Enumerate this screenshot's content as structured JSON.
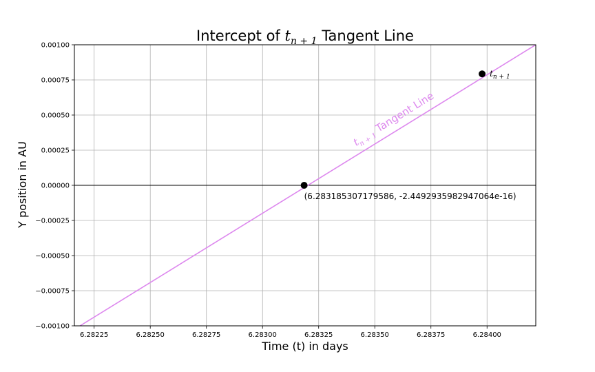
{
  "chart_data": {
    "type": "line",
    "title": {
      "prefix": "Intercept of ",
      "math_base": "t",
      "math_sub": "n + 1",
      "suffix": " Tangent Line"
    },
    "xlabel": "Time (t) in days",
    "ylabel": "Y position in AU",
    "xlim": [
      6.282162,
      6.284217
    ],
    "ylim": [
      -0.001,
      0.001
    ],
    "x_ticks": [
      {
        "value": 6.28225,
        "label": "6.28225"
      },
      {
        "value": 6.2825,
        "label": "6.28250"
      },
      {
        "value": 6.28275,
        "label": "6.28275"
      },
      {
        "value": 6.283,
        "label": "6.28300"
      },
      {
        "value": 6.28325,
        "label": "6.28325"
      },
      {
        "value": 6.2835,
        "label": "6.28350"
      },
      {
        "value": 6.28375,
        "label": "6.28375"
      },
      {
        "value": 6.284,
        "label": "6.28400"
      }
    ],
    "y_ticks": [
      {
        "value": 0.001,
        "label": "0.00100"
      },
      {
        "value": 0.00075,
        "label": "0.00075"
      },
      {
        "value": 0.0005,
        "label": "0.00050"
      },
      {
        "value": 0.00025,
        "label": "0.00025"
      },
      {
        "value": 0.0,
        "label": "0.00000"
      },
      {
        "value": -0.00025,
        "label": "−0.00025"
      },
      {
        "value": -0.0005,
        "label": "−0.00050"
      },
      {
        "value": -0.00075,
        "label": "−0.00075"
      },
      {
        "value": -0.001,
        "label": "−0.00100"
      }
    ],
    "grid": true,
    "zero_line": true,
    "series": [
      {
        "label_base": "t",
        "label_sub": "n + 1",
        "label_suffix": " Tangent Line",
        "color": "#dd88ee",
        "points": [
          {
            "x": 6.282187,
            "y": -0.001
          },
          {
            "x": 6.284217,
            "y": 0.001
          }
        ]
      }
    ],
    "points": [
      {
        "x": 6.283185307179586,
        "y": -2.4492935982947064e-16,
        "label": "(6.283185307179586, -2.4492935982947064e-16)"
      },
      {
        "x": 6.283978,
        "y": 0.000793,
        "label_base": "t",
        "label_sub": "n + 1"
      }
    ],
    "point_color": "#000000"
  }
}
